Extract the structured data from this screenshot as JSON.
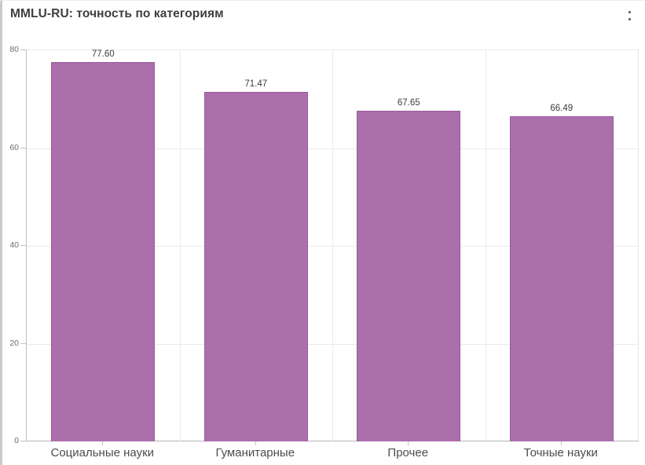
{
  "header": {
    "title": "MMLU-RU: точность по категориям",
    "menu_icon": "kebab-menu"
  },
  "chart_data": {
    "type": "bar",
    "title": "MMLU-RU: точность по категориям",
    "categories": [
      "Социальные науки",
      "Гуманитарные",
      "Прочее",
      "Точные науки"
    ],
    "values": [
      77.6,
      71.47,
      67.65,
      66.49
    ],
    "value_labels": [
      "77.60",
      "71.47",
      "67.65",
      "66.49"
    ],
    "xlabel": "",
    "ylabel": "",
    "ylim": [
      0,
      80
    ],
    "yticks": [
      0,
      20,
      40,
      60,
      80
    ],
    "grid": true,
    "legend": "none",
    "bar_color": "#ab6fac",
    "bar_border_color": "#9c5a9d"
  },
  "colors": {
    "background": "#ffffff",
    "title_text": "#3e3e3e",
    "axis_line": "#c2c2c2",
    "baseline": "#b5b5b5",
    "gridline": "#ebebeb",
    "ytick_text": "#6e6e6e",
    "xtick_text": "#4c4c4c",
    "value_text": "#3d3d3d"
  }
}
